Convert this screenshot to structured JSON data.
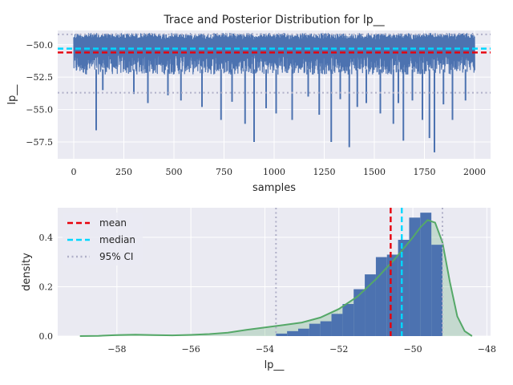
{
  "chart_data": [
    {
      "type": "line",
      "title": "Trace and Posterior Distribution for lp__",
      "xlabel": "samples",
      "ylabel": "lp__",
      "xlim": [
        -80,
        2080
      ],
      "ylim": [
        -58.8,
        -48.9
      ],
      "xticks": [
        0,
        250,
        500,
        750,
        1000,
        1250,
        1500,
        1750,
        2000
      ],
      "xtick_labels": [
        "0",
        "250",
        "500",
        "750",
        "1000",
        "1250",
        "1500",
        "1750",
        "2000"
      ],
      "yticks": [
        -57.5,
        -55.0,
        -52.5,
        -50.0
      ],
      "ytick_labels": [
        "−57.5",
        "−55.0",
        "−52.5",
        "−50.0"
      ],
      "grid": true,
      "n_samples": 2000,
      "trace_band": [
        -52.3,
        -49.1
      ],
      "trace_dips": [
        {
          "x": 112,
          "y": -56.6
        },
        {
          "x": 145,
          "y": -53.5
        },
        {
          "x": 300,
          "y": -53.8
        },
        {
          "x": 370,
          "y": -54.5
        },
        {
          "x": 470,
          "y": -53.9
        },
        {
          "x": 535,
          "y": -54.3
        },
        {
          "x": 640,
          "y": -54.8
        },
        {
          "x": 735,
          "y": -55.8
        },
        {
          "x": 790,
          "y": -54.4
        },
        {
          "x": 855,
          "y": -56.1
        },
        {
          "x": 900,
          "y": -57.5
        },
        {
          "x": 960,
          "y": -54.9
        },
        {
          "x": 1010,
          "y": -55.3
        },
        {
          "x": 1090,
          "y": -55.8
        },
        {
          "x": 1170,
          "y": -54.0
        },
        {
          "x": 1225,
          "y": -55.4
        },
        {
          "x": 1285,
          "y": -57.5
        },
        {
          "x": 1330,
          "y": -54.2
        },
        {
          "x": 1375,
          "y": -57.9
        },
        {
          "x": 1415,
          "y": -54.8
        },
        {
          "x": 1460,
          "y": -54.5
        },
        {
          "x": 1530,
          "y": -55.3
        },
        {
          "x": 1595,
          "y": -56.1
        },
        {
          "x": 1620,
          "y": -54.5
        },
        {
          "x": 1645,
          "y": -57.4
        },
        {
          "x": 1690,
          "y": -54.3
        },
        {
          "x": 1740,
          "y": -55.8
        },
        {
          "x": 1775,
          "y": -57.2
        },
        {
          "x": 1800,
          "y": -58.3
        },
        {
          "x": 1845,
          "y": -54.6
        },
        {
          "x": 1890,
          "y": -55.8
        },
        {
          "x": 1955,
          "y": -54.3
        }
      ],
      "hlines": [
        {
          "name": "mean",
          "y": -50.6,
          "color": "#e8000b",
          "style": "dashed"
        },
        {
          "name": "median",
          "y": -50.3,
          "color": "#00d7ff",
          "style": "dashed"
        },
        {
          "name": "95% CI low",
          "y": -53.7,
          "color": "#b0b0c8",
          "style": "dotted"
        },
        {
          "name": "95% CI high",
          "y": -49.2,
          "color": "#b0b0c8",
          "style": "dotted"
        }
      ],
      "line_color": "#4c72b0"
    },
    {
      "type": "bar",
      "xlabel": "lp__",
      "ylabel": "density",
      "xlim": [
        -59.6,
        -47.9
      ],
      "ylim": [
        0,
        0.52
      ],
      "xticks": [
        -58,
        -56,
        -54,
        -52,
        -50,
        -48
      ],
      "xtick_labels": [
        "−58",
        "−56",
        "−54",
        "−52",
        "−50",
        "−48"
      ],
      "yticks": [
        0.0,
        0.2,
        0.4
      ],
      "ytick_labels": [
        "0.0",
        "0.2",
        "0.4"
      ],
      "grid": true,
      "histogram": {
        "bin_edges": [
          -53.7,
          -53.4,
          -53.1,
          -52.8,
          -52.5,
          -52.2,
          -51.9,
          -51.6,
          -51.3,
          -51.0,
          -50.7,
          -50.4,
          -50.1,
          -49.8,
          -49.5,
          -49.2
        ],
        "density": [
          0.01,
          0.02,
          0.03,
          0.05,
          0.06,
          0.09,
          0.13,
          0.19,
          0.25,
          0.32,
          0.33,
          0.39,
          0.48,
          0.5,
          0.37
        ],
        "color": "#4c72b0"
      },
      "kde": {
        "x": [
          -59.0,
          -58.5,
          -58.0,
          -57.5,
          -57.0,
          -56.5,
          -56.0,
          -55.5,
          -55.0,
          -54.5,
          -54.0,
          -53.5,
          -53.0,
          -52.5,
          -52.0,
          -51.5,
          -51.0,
          -50.5,
          -50.0,
          -49.8,
          -49.6,
          -49.4,
          -49.2,
          -49.0,
          -48.8,
          -48.6,
          -48.4
        ],
        "y": [
          0.0,
          0.001,
          0.004,
          0.006,
          0.004,
          0.003,
          0.005,
          0.008,
          0.014,
          0.025,
          0.035,
          0.045,
          0.055,
          0.075,
          0.11,
          0.16,
          0.23,
          0.31,
          0.4,
          0.44,
          0.47,
          0.46,
          0.38,
          0.22,
          0.08,
          0.02,
          0.0
        ],
        "color": "#55a868"
      },
      "vlines": [
        {
          "name": "mean",
          "x": -50.6,
          "color": "#e8000b",
          "style": "dashed"
        },
        {
          "name": "median",
          "x": -50.3,
          "color": "#00d7ff",
          "style": "dashed"
        },
        {
          "name": "95% CI low",
          "x": -53.7,
          "color": "#b0b0c8",
          "style": "dotted"
        },
        {
          "name": "95% CI high",
          "x": -49.2,
          "color": "#b0b0c8",
          "style": "dotted"
        }
      ],
      "legend": {
        "placement": "top-left",
        "entries": [
          {
            "label": "mean",
            "color": "#e8000b",
            "style": "dashed"
          },
          {
            "label": "median",
            "color": "#00d7ff",
            "style": "dashed"
          },
          {
            "label": "95% CI",
            "color": "#b0b0c8",
            "style": "dotted"
          }
        ]
      }
    }
  ],
  "colors": {
    "axes_bg": "#eaeaf2",
    "grid": "#ffffff",
    "text": "#262626"
  }
}
